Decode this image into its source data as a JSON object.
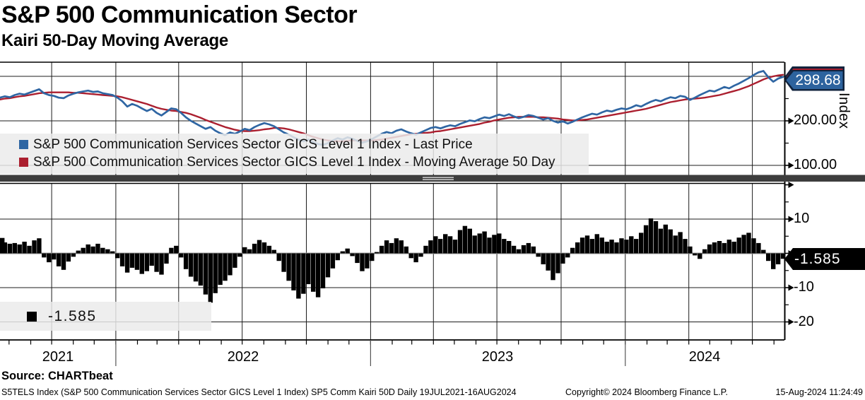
{
  "title": "S&P 500 Communication Sector",
  "subtitle": "Kairi 50-Day Moving Average",
  "colors": {
    "price_line": "#2f66a3",
    "ma_line": "#ab1f2f",
    "bars": "#000000",
    "grid": "#1c1c1c",
    "frame": "#000000",
    "zero_line": "#999999",
    "separator": "#3d3d3d",
    "separator_grip": "#d0d0d0",
    "legend_bg": "#ebebeb",
    "price_badge_fill": "#2d639e",
    "price_badge_border": "#10233d",
    "ma_badge_fill": "#a81e2d",
    "kairi_badge_fill": "#000000"
  },
  "top_panel": {
    "axis_title": "Index",
    "price_badge": "298.68",
    "legend": [
      {
        "label": "S&P 500 Communication Services Sector GICS Level 1 Index - Last Price",
        "color": "#2f66a3"
      },
      {
        "label": "S&P 500 Communication Services Sector GICS Level 1 Index - Moving Average 50 Day",
        "color": "#ab1f2f"
      }
    ],
    "yticks": [
      {
        "value": 200,
        "label": "200.00"
      },
      {
        "value": 100,
        "label": "100.00"
      }
    ]
  },
  "bottom_panel": {
    "kairi_badge": "-1.585",
    "legend_value": "-1.585",
    "yticks": [
      {
        "value": 10,
        "label": "10"
      },
      {
        "value": -10,
        "label": "-10"
      },
      {
        "value": -20,
        "label": "-20"
      }
    ]
  },
  "x_axis": {
    "years": [
      "2021",
      "2022",
      "2023",
      "2024"
    ]
  },
  "footer": {
    "source": "Source: CHARTbeat",
    "left": "S5TELS Index (S&P 500 Communication Services Sector GICS Level 1 Index) SP5 Comm Kairi 50D  Daily 19JUL2021-16AUG2024",
    "copyright": "Copyright© 2024 Bloomberg Finance L.P.",
    "timestamp": "15-Aug-2024 11:24:49"
  },
  "chart_data": [
    {
      "type": "line",
      "title": "S&P 500 Communication Services Sector GICS Level 1 Index with 50-day moving average",
      "x_domain": [
        "19JUL2021",
        "16AUG2024"
      ],
      "sampling": "weekly samples, left to right",
      "ylabel": "Index",
      "ylim": [
        75,
        332
      ],
      "yticks": [
        100,
        200,
        300
      ],
      "grid": true,
      "last_price": 298.68,
      "series": [
        {
          "name": "S&P 500 Communication Services Sector GICS Level 1 Index - Last Price",
          "color": "#2f66a3",
          "values": [
            252,
            255,
            253,
            258,
            261,
            259,
            263,
            267,
            271,
            262,
            258,
            256,
            252,
            251,
            257,
            261,
            264,
            266,
            268,
            265,
            266,
            262,
            260,
            258,
            252,
            244,
            232,
            238,
            234,
            228,
            222,
            227,
            218,
            212,
            220,
            228,
            226,
            218,
            208,
            200,
            194,
            188,
            182,
            186,
            178,
            172,
            168,
            174,
            171,
            176,
            182,
            179,
            186,
            191,
            195,
            192,
            188,
            181,
            174,
            169,
            163,
            158,
            154,
            158,
            152,
            148,
            146,
            150,
            156,
            161,
            158,
            163,
            160,
            155,
            151,
            154,
            159,
            165,
            171,
            175,
            172,
            178,
            181,
            176,
            172,
            169,
            174,
            179,
            184,
            186,
            183,
            187,
            190,
            188,
            193,
            197,
            201,
            199,
            204,
            208,
            206,
            210,
            214,
            211,
            215,
            210,
            206,
            209,
            213,
            211,
            207,
            203,
            206,
            200,
            196,
            199,
            194,
            198,
            203,
            208,
            212,
            216,
            214,
            219,
            223,
            221,
            225,
            228,
            226,
            230,
            235,
            232,
            238,
            243,
            247,
            244,
            249,
            253,
            251,
            256,
            254,
            247,
            252,
            258,
            263,
            268,
            266,
            271,
            276,
            273,
            279,
            284,
            290,
            296,
            303,
            309,
            312,
            298,
            288,
            295,
            298.68
          ]
        },
        {
          "name": "S&P 500 Communication Services Sector GICS Level 1 Index - Moving Average 50 Day",
          "color": "#ab1f2f",
          "values": [
            248,
            250,
            251,
            253,
            255,
            256,
            258,
            260,
            262,
            263,
            264,
            264,
            264,
            264,
            264,
            263,
            263,
            262,
            261,
            260,
            259,
            258,
            257,
            256,
            255,
            253,
            250,
            247,
            244,
            241,
            238,
            234,
            230,
            227,
            225,
            223,
            222,
            220,
            218,
            215,
            211,
            207,
            202,
            198,
            194,
            190,
            186,
            183,
            180,
            178,
            177,
            177,
            178,
            179,
            181,
            182,
            184,
            184,
            183,
            181,
            178,
            175,
            172,
            168,
            164,
            161,
            158,
            156,
            155,
            154,
            154,
            155,
            156,
            156,
            156,
            156,
            156,
            157,
            158,
            160,
            162,
            164,
            166,
            168,
            170,
            171,
            172,
            173,
            174,
            176,
            177,
            179,
            181,
            183,
            185,
            187,
            189,
            191,
            193,
            196,
            198,
            201,
            203,
            205,
            207,
            208,
            209,
            209,
            209,
            209,
            208,
            208,
            207,
            206,
            205,
            203,
            202,
            201,
            201,
            202,
            203,
            205,
            207,
            209,
            211,
            213,
            215,
            217,
            219,
            221,
            223,
            225,
            227,
            230,
            233,
            236,
            239,
            242,
            244,
            246,
            248,
            249,
            250,
            251,
            252,
            254,
            256,
            258,
            261,
            264,
            267,
            270,
            274,
            278,
            283,
            288,
            293,
            297,
            300,
            302,
            303.5
          ]
        }
      ]
    },
    {
      "type": "bar",
      "title": "Kairi 50-Day (% deviation of price from 50-day moving average)",
      "x_domain": [
        "19JUL2021",
        "16AUG2024"
      ],
      "sampling": "weekly samples, left to right",
      "color": "#000000",
      "ylim": [
        -25.3,
        20.7
      ],
      "yticks": [
        -20,
        -10,
        0,
        10,
        20
      ],
      "grid": true,
      "last_value": -1.585,
      "values": [
        4.5,
        3.2,
        2.8,
        3.0,
        2.6,
        3.4,
        2.2,
        3.8,
        4.4,
        -1.2,
        -2.6,
        -1.8,
        -3.8,
        -4.8,
        -2.4,
        -1.0,
        0.8,
        1.6,
        2.6,
        2.0,
        2.8,
        1.6,
        1.2,
        0.6,
        -1.4,
        -3.8,
        -5.6,
        -4.2,
        -4.8,
        -6.0,
        -5.2,
        -3.6,
        -5.4,
        -6.2,
        -3.0,
        1.6,
        2.2,
        -1.2,
        -4.6,
        -6.8,
        -8.2,
        -9.4,
        -12.0,
        -14.4,
        -11.6,
        -9.2,
        -8.0,
        -6.4,
        -4.2,
        -1.0,
        1.8,
        1.2,
        2.8,
        3.9,
        3.2,
        2.2,
        1.0,
        -2.2,
        -5.4,
        -8.0,
        -10.8,
        -13.2,
        -11.8,
        -9.0,
        -11.2,
        -12.8,
        -10.2,
        -7.0,
        -4.4,
        -2.0,
        0.6,
        1.4,
        -0.8,
        -2.8,
        -5.2,
        -4.4,
        -2.2,
        0.4,
        2.2,
        3.8,
        3.0,
        4.4,
        3.8,
        2.0,
        -1.4,
        -2.6,
        -1.0,
        2.2,
        3.8,
        5.0,
        4.2,
        5.6,
        5.0,
        4.0,
        6.8,
        8.0,
        7.2,
        5.2,
        5.8,
        6.4,
        4.6,
        5.4,
        5.8,
        4.2,
        3.6,
        2.2,
        1.2,
        2.4,
        3.0,
        2.0,
        -1.0,
        -3.2,
        -5.0,
        -7.8,
        -5.8,
        -3.0,
        -1.2,
        1.6,
        3.2,
        4.6,
        5.2,
        4.2,
        5.6,
        4.6,
        3.4,
        4.0,
        3.2,
        4.4,
        4.0,
        5.0,
        4.2,
        6.0,
        8.2,
        10.2,
        9.4,
        7.2,
        8.4,
        7.0,
        5.2,
        6.2,
        4.2,
        2.0,
        -0.6,
        -1.6,
        1.2,
        2.6,
        3.2,
        3.6,
        3.0,
        4.0,
        3.4,
        4.6,
        5.4,
        6.0,
        4.4,
        3.0,
        1.0,
        -2.2,
        -4.6,
        -3.2,
        -1.585
      ]
    }
  ]
}
